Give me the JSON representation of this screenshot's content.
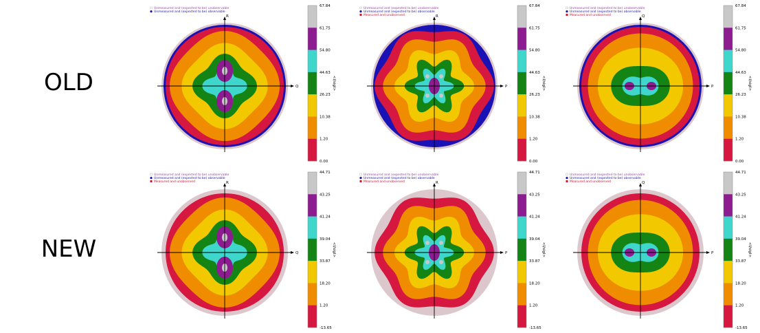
{
  "rows": {
    "old_label": "OLD",
    "new_label": "NEW"
  },
  "colors": {
    "band": [
      "#d6173f",
      "#f08c00",
      "#f2c800",
      "#148514",
      "#3fd6cc",
      "#8e1c91",
      "#c8c8c8"
    ],
    "unobservable": "#dcc8cc",
    "observable": "#1a12b4",
    "measured_unobserved": "#c4183a",
    "crosshair": "#000000"
  },
  "chart_data": [
    {
      "type": "heatmap",
      "row": "OLD",
      "legend": [
        {
          "text": "Unmeasured and (expected to be) unobservable",
          "marker": "unobservable",
          "color": "#8e4a9a"
        },
        {
          "text": "Unmeasured and (expected to be) observable",
          "marker": "observable",
          "color": "#1a12b4"
        }
      ],
      "axes": {
        "up": "R",
        "right": "Q"
      },
      "colorbar_ticks": [
        "67.84",
        "61.75",
        "54.80",
        "44.63",
        "26.23",
        "10.38",
        "1.20",
        "0.00"
      ],
      "colorbar_label": "<I/sigI>",
      "pattern": "twin-vertical",
      "outer_ring": "observable"
    },
    {
      "type": "heatmap",
      "row": "OLD",
      "legend": [
        {
          "text": "Unmeasured and (expected to be) unobservable",
          "marker": "unobservable",
          "color": "#8e4a9a"
        },
        {
          "text": "Unmeasured and (expected to be) observable",
          "marker": "observable",
          "color": "#1a12b4"
        },
        {
          "text": "Measured and unobserved",
          "marker": "measured",
          "color": "#c4183a"
        }
      ],
      "axes": {
        "up": "R",
        "right": "P"
      },
      "colorbar_ticks": [
        "67.84",
        "61.75",
        "54.80",
        "44.63",
        "26.23",
        "10.38",
        "1.20",
        "0.00"
      ],
      "colorbar_label": "<I/sigI>",
      "pattern": "flower",
      "outer_ring": "observable"
    },
    {
      "type": "heatmap",
      "row": "OLD",
      "legend": [
        {
          "text": "Unmeasured and (expected to be) unobservable",
          "marker": "unobservable",
          "color": "#8e4a9a"
        },
        {
          "text": "Unmeasured and (expected to be) observable",
          "marker": "observable",
          "color": "#1a12b4"
        },
        {
          "text": "Measured and unobserved",
          "marker": "measured",
          "color": "#c4183a"
        }
      ],
      "axes": {
        "up": "Q",
        "right": "P"
      },
      "colorbar_ticks": [
        "67.84",
        "61.75",
        "54.80",
        "44.63",
        "26.23",
        "10.38",
        "1.20",
        "0.00"
      ],
      "colorbar_label": "<I/sigI>",
      "pattern": "twin-horizontal",
      "outer_ring": "observable"
    },
    {
      "type": "heatmap",
      "row": "NEW",
      "legend": [
        {
          "text": "Unmeasured and (expected to be) unobservable",
          "marker": "unobservable",
          "color": "#8e4a9a"
        },
        {
          "text": "Unmeasured and (expected to be) observable",
          "marker": "observable",
          "color": "#1a12b4"
        },
        {
          "text": "Measured and unobserved",
          "marker": "measured",
          "color": "#c4183a"
        }
      ],
      "axes": {
        "up": "R",
        "right": "Q"
      },
      "colorbar_ticks": [
        "44.71",
        "43.25",
        "41.24",
        "39.04",
        "33.87",
        "18.20",
        "1.20",
        "-13.65"
      ],
      "colorbar_label": "<I/sigI>",
      "pattern": "twin-vertical",
      "outer_ring": "none"
    },
    {
      "type": "heatmap",
      "row": "NEW",
      "legend": [
        {
          "text": "Unmeasured and (expected to be) unobservable",
          "marker": "unobservable",
          "color": "#8e4a9a"
        },
        {
          "text": "Unmeasured and (expected to be) observable",
          "marker": "observable",
          "color": "#1a12b4"
        },
        {
          "text": "Measured and unobserved",
          "marker": "measured",
          "color": "#c4183a"
        }
      ],
      "axes": {
        "up": "R",
        "right": "P"
      },
      "colorbar_ticks": [
        "44.71",
        "43.25",
        "41.24",
        "39.04",
        "33.87",
        "18.20",
        "1.20",
        "-13.65"
      ],
      "colorbar_label": "<I/sigI>",
      "pattern": "flower",
      "outer_ring": "none"
    },
    {
      "type": "heatmap",
      "row": "NEW",
      "legend": [
        {
          "text": "Unmeasured and (expected to be) unobservable",
          "marker": "unobservable",
          "color": "#8e4a9a"
        },
        {
          "text": "Unmeasured and (expected to be) observable",
          "marker": "observable",
          "color": "#1a12b4"
        },
        {
          "text": "Measured and unobserved",
          "marker": "measured",
          "color": "#c4183a"
        }
      ],
      "axes": {
        "up": "Q",
        "right": "P"
      },
      "colorbar_ticks": [
        "44.71",
        "43.25",
        "41.24",
        "39.04",
        "33.87",
        "18.20",
        "1.20",
        "-13.65"
      ],
      "colorbar_label": "<I/sigI>",
      "pattern": "twin-horizontal",
      "outer_ring": "none"
    }
  ]
}
